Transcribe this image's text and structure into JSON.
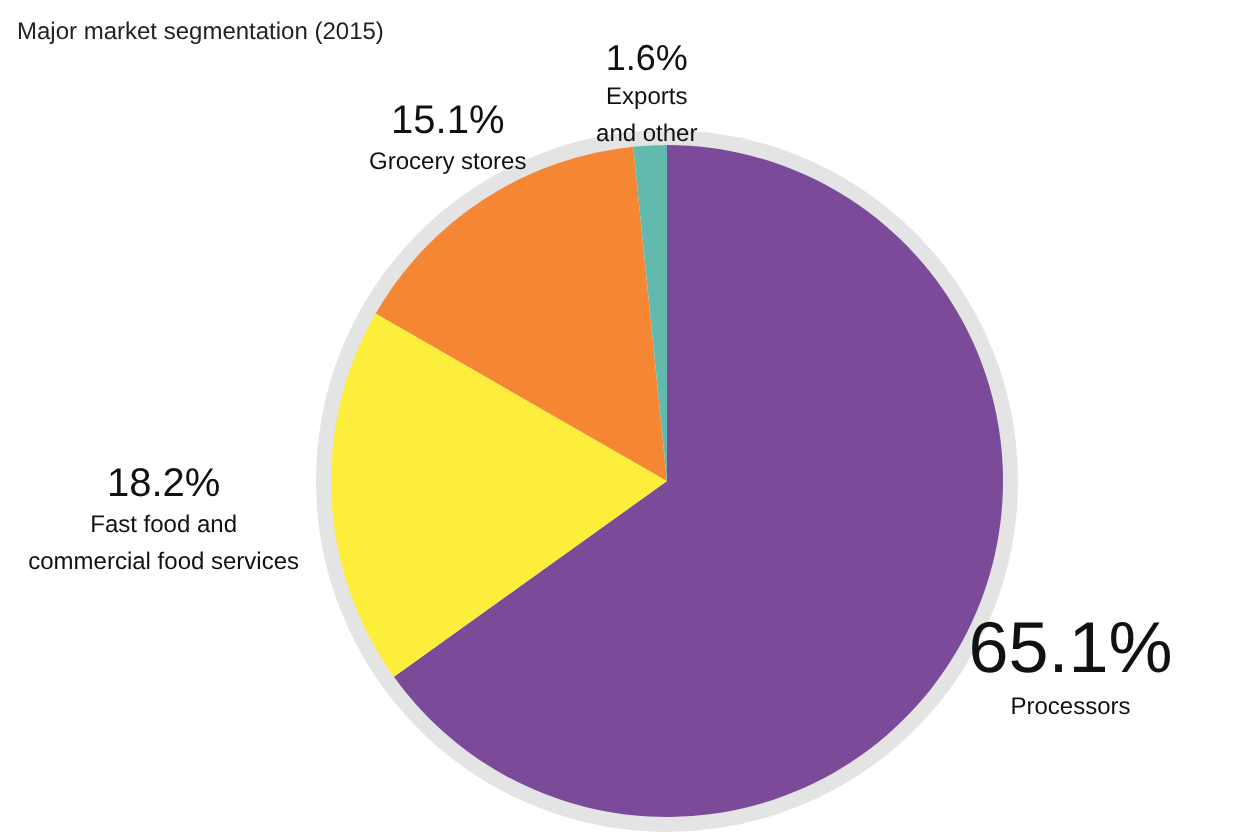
{
  "chart_data": {
    "type": "pie",
    "title": "Major market segmentation (2015)",
    "categories": [
      "Processors",
      "Fast food and\ncommercial food services",
      "Grocery stores",
      "Exports\nand other"
    ],
    "values": [
      65.1,
      18.2,
      15.1,
      1.6
    ],
    "colors": [
      "#7b4a99",
      "#fcee3a",
      "#f58634",
      "#62b9ae"
    ],
    "value_labels": [
      "65.1%",
      "18.2%",
      "15.1%",
      "1.6%"
    ]
  }
}
